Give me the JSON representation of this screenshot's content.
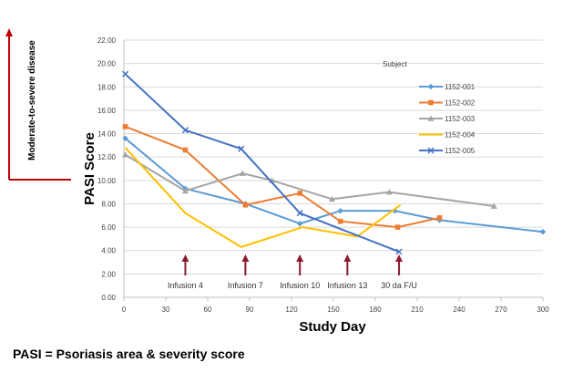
{
  "chart_data": {
    "type": "line",
    "xlabel": "Study Day",
    "ylabel": "PASI Score",
    "xlim": [
      0,
      300
    ],
    "ylim": [
      0,
      22
    ],
    "xticks": [
      0,
      30,
      60,
      90,
      120,
      150,
      180,
      210,
      240,
      270,
      300
    ],
    "yticks": [
      0,
      2,
      4,
      6,
      8,
      10,
      12,
      14,
      16,
      18,
      20,
      22
    ],
    "ytick_labels": [
      "0.00",
      "2.00",
      "4.00",
      "6.00",
      "8.00",
      "10.00",
      "12.00",
      "14.00",
      "16.00",
      "18.00",
      "20.00",
      "22.00"
    ],
    "grid": "horizontal",
    "legend": {
      "title": "Subject",
      "placement": "right"
    },
    "series": [
      {
        "name": "1152-001",
        "color": "#5b9bd5",
        "marker": "diamond",
        "points": [
          [
            1,
            13.6
          ],
          [
            44,
            9.3
          ],
          [
            87,
            8.0
          ],
          [
            126,
            6.3
          ],
          [
            155,
            7.4
          ],
          [
            194,
            7.4
          ],
          [
            226,
            6.6
          ],
          [
            300,
            5.6
          ]
        ]
      },
      {
        "name": "1152-002",
        "color": "#ed7d31",
        "marker": "square",
        "points": [
          [
            1,
            14.6
          ],
          [
            44,
            12.6
          ],
          [
            87,
            7.9
          ],
          [
            126,
            8.9
          ],
          [
            155,
            6.5
          ],
          [
            196,
            6.0
          ],
          [
            226,
            6.8
          ]
        ]
      },
      {
        "name": "1152-003",
        "color": "#a5a5a5",
        "marker": "triangle",
        "points": [
          [
            1,
            12.2
          ],
          [
            44,
            9.1
          ],
          [
            85,
            10.6
          ],
          [
            106,
            10.0
          ],
          [
            149,
            8.4
          ],
          [
            190,
            9.0
          ],
          [
            265,
            7.8
          ]
        ]
      },
      {
        "name": "1152-004",
        "color": "#ffc000",
        "marker": "none",
        "points": [
          [
            1,
            12.8
          ],
          [
            44,
            7.2
          ],
          [
            84,
            4.3
          ],
          [
            128,
            6.0
          ],
          [
            167,
            5.2
          ],
          [
            198,
            7.9
          ]
        ]
      },
      {
        "name": "1152-005",
        "color": "#4472c4",
        "marker": "x",
        "points": [
          [
            1,
            19.1
          ],
          [
            44,
            14.3
          ],
          [
            84,
            12.7
          ],
          [
            126,
            7.2
          ],
          [
            197,
            3.9
          ]
        ]
      }
    ],
    "annotations": [
      {
        "label": "Infusion 4",
        "x": 44
      },
      {
        "label": "Infusion 7",
        "x": 87
      },
      {
        "label": "Infusion 10",
        "x": 126
      },
      {
        "label": "Infusion 13",
        "x": 160
      },
      {
        "label": "30 da F/U",
        "x": 197
      }
    ],
    "threshold": {
      "label": "Moderate-to-severe disease",
      "y": 10
    }
  },
  "colors": {
    "annotation_arrow": "#8b1a2e"
  },
  "footnote": "PASI = Psoriasis area & severity score"
}
